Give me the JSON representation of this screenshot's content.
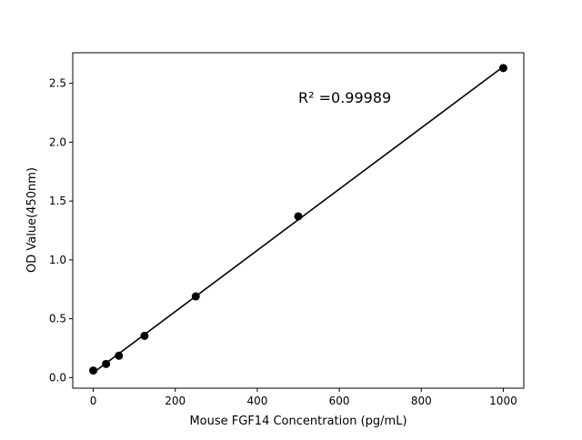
{
  "chart_data": {
    "type": "scatter",
    "title": "",
    "xlabel": "Mouse FGF14 Concentration (pg/mL)",
    "ylabel": "OD Value(450nm)",
    "xlim": [
      -50,
      1050
    ],
    "ylim": [
      -0.09,
      2.76
    ],
    "xticks": [
      0,
      200,
      400,
      600,
      800,
      1000
    ],
    "xtick_labels": [
      "0",
      "200",
      "400",
      "600",
      "800",
      "1000"
    ],
    "yticks": [
      0.0,
      0.5,
      1.0,
      1.5,
      2.0,
      2.5
    ],
    "ytick_labels": [
      "0.0",
      "0.5",
      "1.0",
      "1.5",
      "2.0",
      "2.5"
    ],
    "grid": false,
    "series": [
      {
        "x": [
          0,
          31.25,
          62.5,
          125,
          250,
          500,
          1000
        ],
        "y": [
          0.06,
          0.116,
          0.186,
          0.355,
          0.69,
          1.37,
          2.63
        ],
        "color": "#000000",
        "marker": "circle",
        "fit_line": "linear"
      }
    ],
    "annotation": "R² =0.99989",
    "annotation_position": [
      500,
      2.38
    ]
  }
}
